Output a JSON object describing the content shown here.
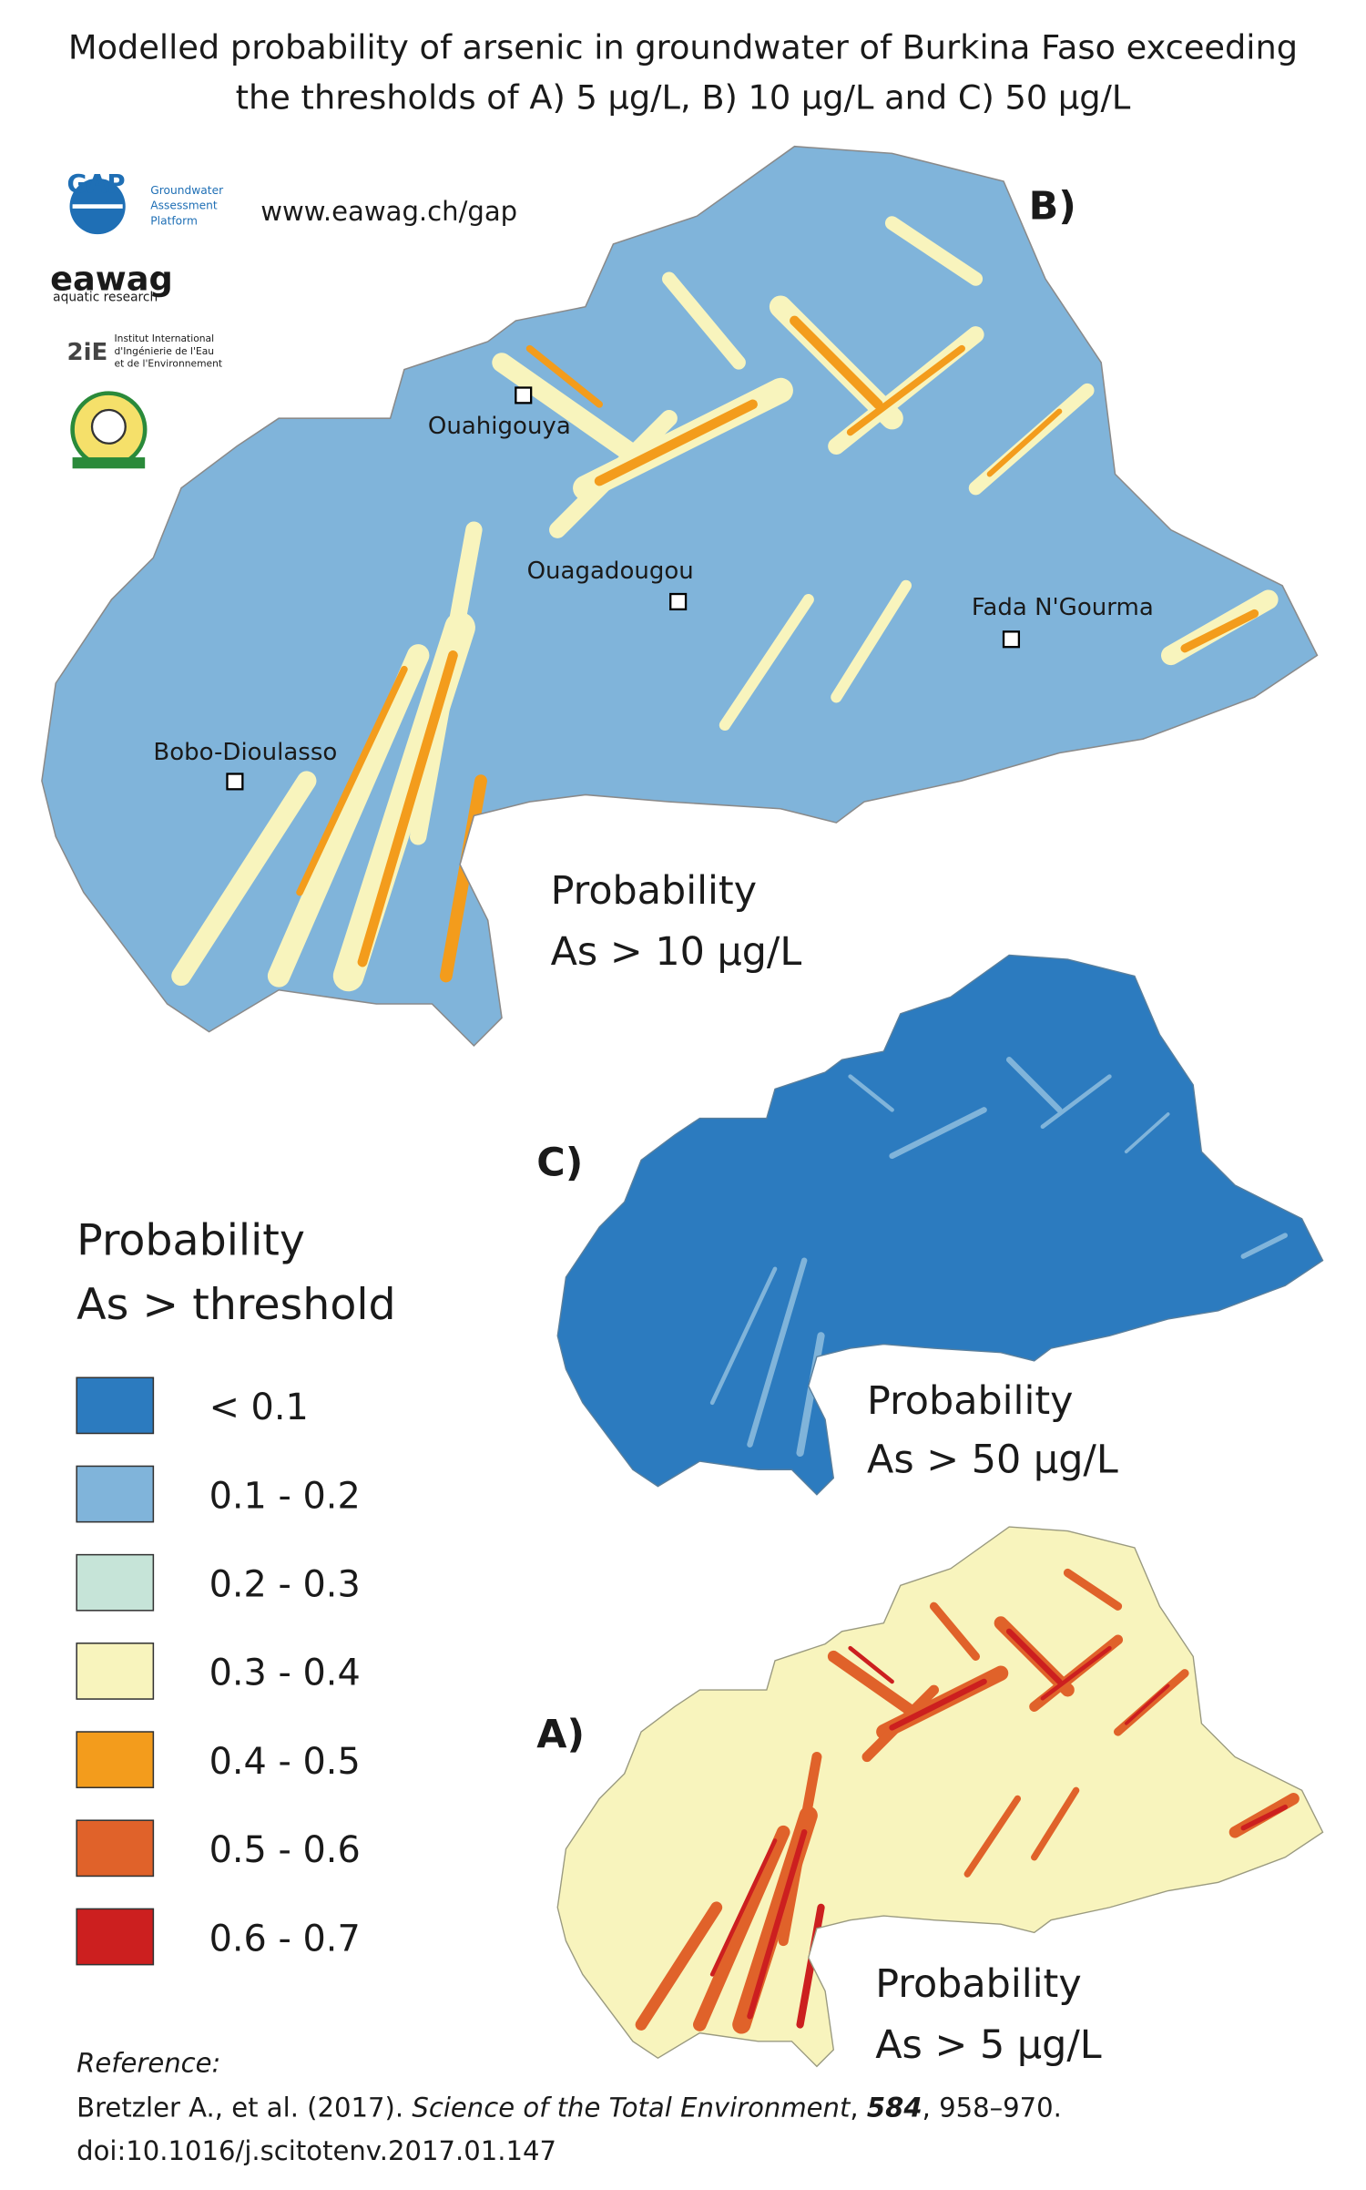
{
  "title": [
    "Modelled probability of arsenic in groundwater of Burkina Faso exceeding",
    "the thresholds of A) 5 µg/L, B) 10 µg/L and C) 50 µg/L"
  ],
  "logos": {
    "gap": {
      "name": "GAP",
      "subtitle": [
        "Groundwater",
        "Assessment",
        "Platform"
      ]
    },
    "url": "www.eawag.ch/gap",
    "eawag": {
      "name": "eawag",
      "subtitle": "aquatic research"
    },
    "institute": {
      "name": "2iE",
      "subtitle": [
        "Institut International",
        "d'Ingénierie de l'Eau",
        "et de l'Environnement"
      ]
    }
  },
  "maps": [
    {
      "panel": "B)",
      "label": [
        "Probability",
        "As > 10 µg/L"
      ],
      "cities": [
        "Ouahigouya",
        "Ouagadougou",
        "Fada N'Gourma",
        "Bobo-Dioulasso"
      ]
    },
    {
      "panel": "C)",
      "label": [
        "Probability",
        "As > 50 µg/L"
      ]
    },
    {
      "panel": "A)",
      "label": [
        "Probability",
        "As > 5 µg/L"
      ]
    }
  ],
  "legend": {
    "title": [
      "Probability",
      "As > threshold"
    ],
    "items": [
      {
        "label": "< 0.1",
        "color": "#2c7bbf"
      },
      {
        "label": "0.1 - 0.2",
        "color": "#80b4da"
      },
      {
        "label": "0.2 - 0.3",
        "color": "#c6e4d8"
      },
      {
        "label": "0.3 - 0.4",
        "color": "#f8f4bd"
      },
      {
        "label": "0.4 - 0.5",
        "color": "#f39c1c"
      },
      {
        "label": "0.5 - 0.6",
        "color": "#e0622a"
      },
      {
        "label": "0.6 - 0.7",
        "color": "#cc1f1f"
      }
    ]
  },
  "reference": {
    "heading": "Reference:",
    "authors": "Bretzler A., et al. (2017). ",
    "journal": "Science of the Total Environment",
    "volume": "584",
    "pages": "958–970.",
    "doi": "doi:10.1016/j.scitotenv.2017.01.147"
  }
}
